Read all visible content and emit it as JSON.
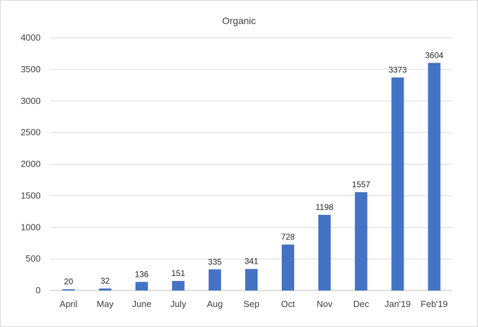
{
  "chart_data": {
    "type": "bar",
    "title": "Organic",
    "xlabel": "",
    "ylabel": "",
    "categories": [
      "April",
      "May",
      "June",
      "July",
      "Aug",
      "Sep",
      "Oct",
      "Nov",
      "Dec",
      "Jan'19",
      "Feb'19"
    ],
    "values": [
      20,
      32,
      136,
      151,
      335,
      341,
      728,
      1198,
      1557,
      3373,
      3604
    ],
    "ylim": [
      0,
      4000
    ],
    "yticks": [
      0,
      500,
      1000,
      1500,
      2000,
      2500,
      3000,
      3500,
      4000
    ],
    "grid": true,
    "legend": "none",
    "data_labels": true,
    "colors": {
      "bar": "#4472c4",
      "grid": "#d9d9d9",
      "axis": "#bfbfbf",
      "text": "#404040"
    }
  }
}
